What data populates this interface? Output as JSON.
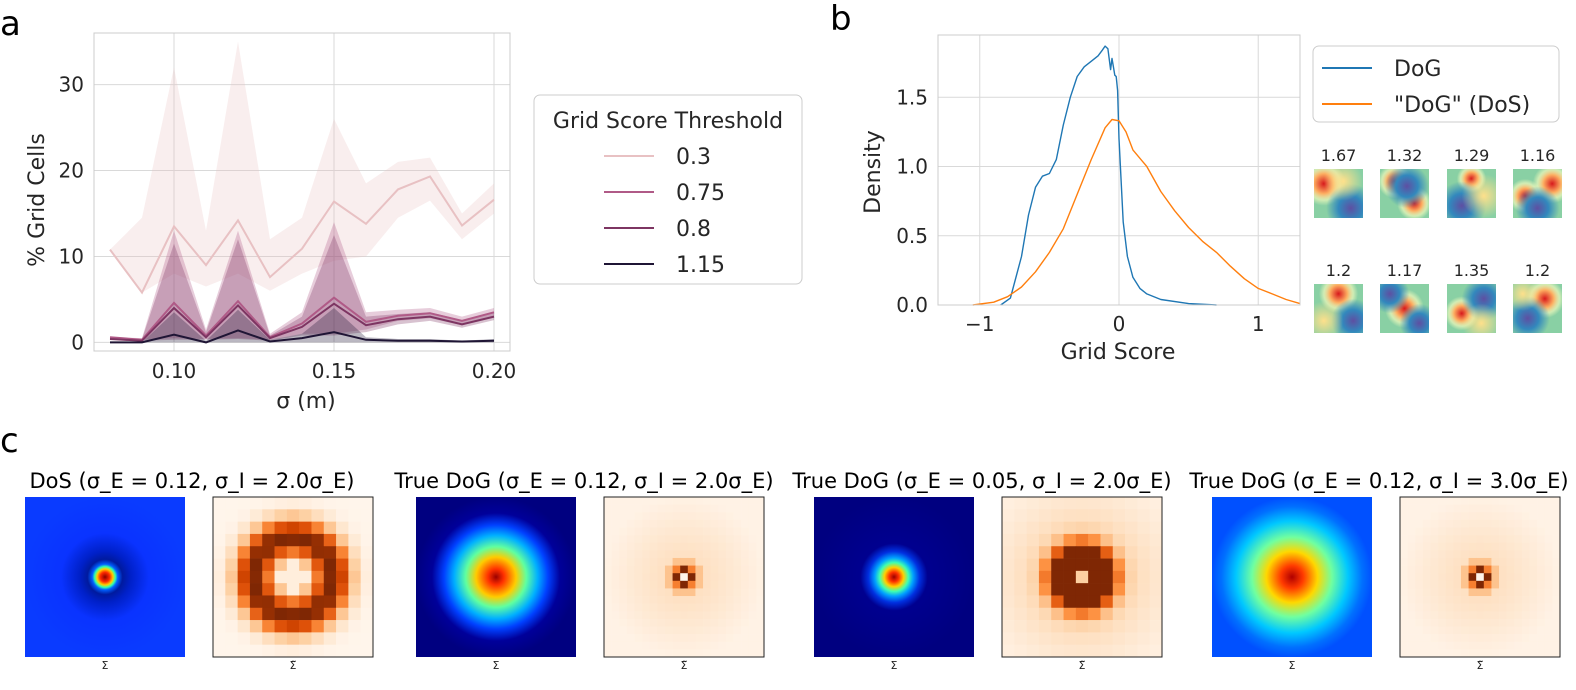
{
  "panels": {
    "a": {
      "letter": "a"
    },
    "b": {
      "letter": "b"
    },
    "c": {
      "letter": "c"
    }
  },
  "chart_data": [
    {
      "id": "a",
      "type": "line",
      "xlabel": "σ (m)",
      "ylabel": "% Grid Cells",
      "xlim": [
        0.075,
        0.205
      ],
      "ylim": [
        -1,
        36
      ],
      "xticks": [
        0.1,
        0.15,
        0.2
      ],
      "xtick_labels": [
        "0.10",
        "0.15",
        "0.20"
      ],
      "yticks": [
        0,
        10,
        20,
        30
      ],
      "ytick_labels": [
        "0",
        "10",
        "20",
        "30"
      ],
      "grid": true,
      "legend": {
        "title": "Grid Score Threshold",
        "placement": "right"
      },
      "x": [
        0.08,
        0.09,
        0.1,
        0.11,
        0.12,
        0.13,
        0.14,
        0.15,
        0.16,
        0.17,
        0.18,
        0.19,
        0.2
      ],
      "series": [
        {
          "name": "0.3",
          "color": "#e8c1c3",
          "values": [
            10.8,
            5.8,
            13.5,
            9.0,
            14.2,
            7.6,
            10.9,
            16.4,
            13.8,
            17.8,
            19.3,
            13.6,
            16.6
          ],
          "lower": [
            10.8,
            5.8,
            8.0,
            6.5,
            8.0,
            6.0,
            8.0,
            9.5,
            10.0,
            14.5,
            16.5,
            12.0,
            15.0
          ],
          "upper": [
            10.8,
            14.5,
            32.0,
            13.0,
            35.0,
            12.0,
            14.5,
            26.0,
            18.5,
            21.0,
            21.5,
            15.0,
            18.5
          ]
        },
        {
          "name": "0.75",
          "color": "#b05a87",
          "values": [
            0.6,
            0.3,
            4.6,
            0.8,
            4.8,
            0.6,
            2.2,
            5.2,
            2.4,
            3.1,
            3.4,
            2.5,
            3.5
          ],
          "lower": [
            0.6,
            0.3,
            0.5,
            0.4,
            0.5,
            0.3,
            1.0,
            1.0,
            1.5,
            2.5,
            2.8,
            2.0,
            3.0
          ],
          "upper": [
            0.6,
            0.5,
            13.0,
            1.5,
            13.0,
            1.0,
            3.5,
            14.0,
            3.5,
            3.8,
            4.0,
            3.0,
            4.0
          ]
        },
        {
          "name": "0.8",
          "color": "#7d3562",
          "values": [
            0.4,
            0.2,
            4.0,
            0.6,
            4.3,
            0.5,
            1.8,
            4.5,
            2.0,
            2.7,
            3.0,
            2.1,
            3.0
          ],
          "lower": [
            0.4,
            0.2,
            0.3,
            0.3,
            0.4,
            0.2,
            0.8,
            0.8,
            1.2,
            2.1,
            2.5,
            1.7,
            2.6
          ],
          "upper": [
            0.4,
            0.4,
            11.5,
            1.2,
            12.0,
            0.8,
            3.0,
            12.5,
            3.0,
            3.3,
            3.5,
            2.6,
            3.5
          ]
        },
        {
          "name": "1.15",
          "color": "#1f1535",
          "values": [
            0.0,
            0.0,
            0.9,
            0.0,
            1.4,
            0.1,
            0.5,
            1.2,
            0.3,
            0.2,
            0.2,
            0.1,
            0.2
          ],
          "lower": [
            0,
            0,
            0,
            0,
            0,
            0,
            0,
            0,
            0,
            0,
            0,
            0,
            0
          ],
          "upper": [
            0,
            0,
            3.5,
            0.2,
            3.8,
            0.3,
            1.0,
            4.0,
            0.6,
            0.4,
            0.4,
            0.2,
            0.4
          ]
        }
      ]
    },
    {
      "id": "b",
      "type": "line",
      "xlabel": "Grid Score",
      "ylabel": "Density",
      "xlim": [
        -1.3,
        1.3
      ],
      "ylim": [
        0,
        1.95
      ],
      "xticks": [
        -1,
        0,
        1
      ],
      "xtick_labels": [
        "−1",
        "0",
        "1"
      ],
      "yticks": [
        0.0,
        0.5,
        1.0,
        1.5
      ],
      "ytick_labels": [
        "0.0",
        "0.5",
        "1.0",
        "1.5"
      ],
      "grid": true,
      "legend": {
        "placement": "right"
      },
      "series": [
        {
          "name": "DoG",
          "color": "#1f77b4",
          "x": [
            -0.85,
            -0.78,
            -0.7,
            -0.65,
            -0.6,
            -0.55,
            -0.5,
            -0.45,
            -0.4,
            -0.35,
            -0.3,
            -0.25,
            -0.2,
            -0.15,
            -0.12,
            -0.1,
            -0.08,
            -0.06,
            -0.05,
            -0.04,
            -0.03,
            -0.02,
            -0.01,
            0.0,
            0.03,
            0.06,
            0.1,
            0.15,
            0.2,
            0.3,
            0.5,
            0.7
          ],
          "values": [
            0.0,
            0.05,
            0.35,
            0.65,
            0.85,
            0.93,
            0.95,
            1.05,
            1.3,
            1.5,
            1.65,
            1.72,
            1.76,
            1.8,
            1.84,
            1.87,
            1.85,
            1.7,
            1.78,
            1.72,
            1.66,
            1.65,
            1.55,
            1.2,
            0.6,
            0.35,
            0.2,
            0.12,
            0.08,
            0.04,
            0.01,
            0.0
          ]
        },
        {
          "name": "\"DoG\" (DoS)",
          "color": "#ff7f0e",
          "x": [
            -1.05,
            -0.9,
            -0.8,
            -0.7,
            -0.6,
            -0.5,
            -0.4,
            -0.3,
            -0.2,
            -0.1,
            -0.05,
            0.0,
            0.05,
            0.1,
            0.2,
            0.3,
            0.4,
            0.5,
            0.6,
            0.7,
            0.8,
            0.9,
            1.0,
            1.1,
            1.2,
            1.3
          ],
          "values": [
            0.0,
            0.02,
            0.06,
            0.13,
            0.24,
            0.38,
            0.55,
            0.8,
            1.05,
            1.28,
            1.34,
            1.33,
            1.25,
            1.12,
            1.0,
            0.82,
            0.68,
            0.56,
            0.46,
            0.38,
            0.28,
            0.19,
            0.12,
            0.08,
            0.04,
            0.01
          ]
        }
      ]
    }
  ],
  "ratemaps": {
    "scores": [
      "1.67",
      "1.32",
      "1.29",
      "1.16",
      "1.2",
      "1.17",
      "1.35",
      "1.2"
    ]
  },
  "panel_c": {
    "groups": [
      {
        "title": "DoS (σ_E = 0.12, σ_I = 2.0σ_E)",
        "label_left": "Σ",
        "label_right": "Σ̃"
      },
      {
        "title": "True DoG (σ_E = 0.12, σ_I = 2.0σ_E)",
        "label_left": "Σ",
        "label_right": "Σ̃"
      },
      {
        "title": "True DoG (σ_E = 0.05, σ_I = 2.0σ_E)",
        "label_left": "Σ",
        "label_right": "Σ̃"
      },
      {
        "title": "True DoG (σ_E = 0.12, σ_I = 3.0σ_E)",
        "label_left": "Σ",
        "label_right": "Σ̃"
      }
    ]
  },
  "colors": {
    "blue": "#1f77b4",
    "orange": "#ff7f0e",
    "grid": "#d9d9d9"
  }
}
